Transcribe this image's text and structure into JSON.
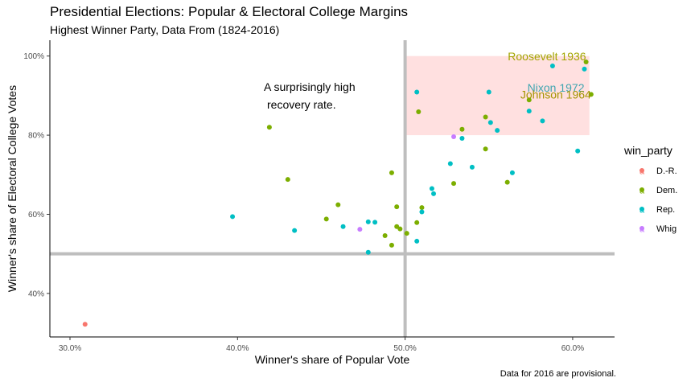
{
  "title": "Presidential Elections: Popular & Electoral College Margins",
  "subtitle": "Highest Winner Party, Data From (1824-2016)",
  "caption": "Data for 2016 are provisional.",
  "annotation": {
    "lines": [
      "A surprisingly high",
      "recovery rate."
    ]
  },
  "chart_data": {
    "type": "scatter",
    "xlabel": "Winner's share of Popular Vote",
    "ylabel": "Winner's share of Electoral College Votes",
    "xlim": [
      0.288,
      0.625
    ],
    "ylim": [
      0.29,
      1.04
    ],
    "xticks": [
      0.3,
      0.4,
      0.5,
      0.6
    ],
    "xtick_labels": [
      "30.0%",
      "40.0%",
      "50.0%",
      "60.0%"
    ],
    "yticks": [
      0.4,
      0.6,
      0.8,
      1.0
    ],
    "ytick_labels": [
      "40%",
      "60%",
      "80%",
      "100%"
    ],
    "grid": false,
    "reference_lines": {
      "x": 0.5,
      "y": 0.5,
      "color": "#bebebe"
    },
    "highlight_region": {
      "x": [
        0.5,
        0.61
      ],
      "y": [
        0.8,
        1.0
      ],
      "color": "#ffe0e0"
    },
    "legend": {
      "title": "win_party",
      "position": "right"
    },
    "series": [
      {
        "name": "D.-R.",
        "color": "#f8766d",
        "points": [
          [
            0.309,
            0.322
          ]
        ]
      },
      {
        "name": "Dem.",
        "color": "#7cae00",
        "points": [
          [
            0.419,
            0.82
          ],
          [
            0.43,
            0.688
          ],
          [
            0.453,
            0.588
          ],
          [
            0.46,
            0.624
          ],
          [
            0.488,
            0.546
          ],
          [
            0.492,
            0.705
          ],
          [
            0.492,
            0.522
          ],
          [
            0.495,
            0.619
          ],
          [
            0.495,
            0.569
          ],
          [
            0.497,
            0.563
          ],
          [
            0.501,
            0.552
          ],
          [
            0.507,
            0.579
          ],
          [
            0.51,
            0.617
          ],
          [
            0.508,
            0.859
          ],
          [
            0.529,
            0.678
          ],
          [
            0.534,
            0.815
          ],
          [
            0.548,
            0.765
          ],
          [
            0.548,
            0.846
          ],
          [
            0.561,
            0.681
          ],
          [
            0.574,
            0.889
          ],
          [
            0.608,
            0.985
          ],
          [
            0.611,
            0.903
          ]
        ]
      },
      {
        "name": "Rep.",
        "color": "#00bfc4",
        "points": [
          [
            0.397,
            0.594
          ],
          [
            0.434,
            0.559
          ],
          [
            0.463,
            0.569
          ],
          [
            0.478,
            0.581
          ],
          [
            0.478,
            0.504
          ],
          [
            0.482,
            0.58
          ],
          [
            0.507,
            0.532
          ],
          [
            0.507,
            0.909
          ],
          [
            0.51,
            0.606
          ],
          [
            0.516,
            0.665
          ],
          [
            0.517,
            0.652
          ],
          [
            0.527,
            0.728
          ],
          [
            0.534,
            0.792
          ],
          [
            0.54,
            0.719
          ],
          [
            0.55,
            0.909
          ],
          [
            0.551,
            0.832
          ],
          [
            0.555,
            0.812
          ],
          [
            0.564,
            0.705
          ],
          [
            0.574,
            0.861
          ],
          [
            0.582,
            0.836
          ],
          [
            0.588,
            0.975
          ],
          [
            0.603,
            0.76
          ],
          [
            0.607,
            0.967
          ]
        ]
      },
      {
        "name": "Whig",
        "color": "#c77cff",
        "points": [
          [
            0.473,
            0.562
          ],
          [
            0.529,
            0.796
          ]
        ]
      }
    ],
    "labels": [
      {
        "text": "Roosevelt 1936",
        "x": 0.608,
        "y": 0.985,
        "color": "#a3a500",
        "anchor": "end",
        "dy": -2
      },
      {
        "text": "Nixon 1972",
        "x": 0.607,
        "y": 0.967,
        "color": "#3fa5b0",
        "anchor": "end",
        "dy": 28
      },
      {
        "text": "Johnson 1964",
        "x": 0.611,
        "y": 0.903,
        "color": "#a39500",
        "anchor": "end",
        "dy": 5
      }
    ]
  }
}
